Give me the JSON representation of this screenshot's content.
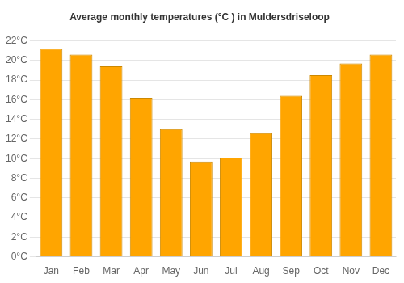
{
  "chart_data": {
    "type": "bar",
    "title": "Average monthly temperatures (°C ) in Muldersdriseloop",
    "categories": [
      "Jan",
      "Feb",
      "Mar",
      "Apr",
      "May",
      "Jun",
      "Jul",
      "Aug",
      "Sep",
      "Oct",
      "Nov",
      "Dec"
    ],
    "values": [
      21.2,
      20.6,
      19.4,
      16.2,
      13.0,
      9.7,
      10.1,
      12.6,
      16.4,
      18.5,
      19.7,
      20.6
    ],
    "color": "#FFA500",
    "ylim": [
      0,
      23
    ],
    "yticks": [
      {
        "value": 0,
        "label": "0°C"
      },
      {
        "value": 2,
        "label": "2°C"
      },
      {
        "value": 4,
        "label": "4°C"
      },
      {
        "value": 6,
        "label": "6°C"
      },
      {
        "value": 8,
        "label": "8°C"
      },
      {
        "value": 10,
        "label": "10°C"
      },
      {
        "value": 12,
        "label": "12°C"
      },
      {
        "value": 14,
        "label": "14°C"
      },
      {
        "value": 16,
        "label": "16°C"
      },
      {
        "value": 18,
        "label": "18°C"
      },
      {
        "value": 20,
        "label": "20°C"
      },
      {
        "value": 22,
        "label": "22°C"
      }
    ],
    "grid": true
  }
}
